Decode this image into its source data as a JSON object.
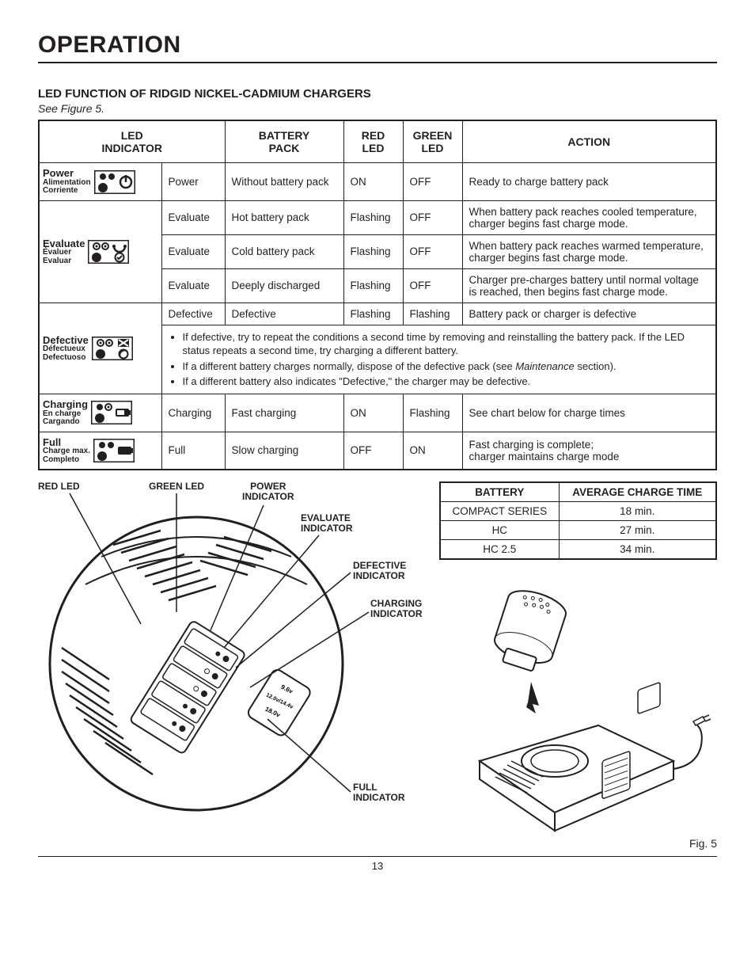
{
  "page_title": "OPERATION",
  "subheading": "LED FUNCTION OF RIDGID NICKEL-CADMIUM CHARGERS",
  "figure_ref": "See Figure 5.",
  "headers": {
    "led_indicator": "LED\nINDICATOR",
    "battery_pack": "BATTERY\nPACK",
    "red_led": "RED\nLED",
    "green_led": "GREEN\nLED",
    "action": "ACTION"
  },
  "rows": {
    "power": {
      "labels": [
        "Power",
        "Alimentation",
        "Corriente"
      ],
      "indicator": "Power",
      "battery": "Without battery pack",
      "red": "ON",
      "green": "OFF",
      "action": "Ready to charge battery pack"
    },
    "evaluate": {
      "labels": [
        "Evaluate",
        "Évaluer",
        "Evaluar"
      ],
      "r1": {
        "indicator": "Evaluate",
        "battery": "Hot battery pack",
        "red": "Flashing",
        "green": "OFF",
        "action": "When battery pack reaches cooled temperature, charger begins fast charge mode."
      },
      "r2": {
        "indicator": "Evaluate",
        "battery": "Cold battery pack",
        "red": "Flashing",
        "green": "OFF",
        "action": "When battery pack reaches warmed temperature, charger begins fast charge mode."
      },
      "r3": {
        "indicator": "Evaluate",
        "battery": "Deeply discharged",
        "red": "Flashing",
        "green": "OFF",
        "action": "Charger pre-charges battery until normal voltage is reached, then begins fast charge mode."
      }
    },
    "defective": {
      "labels": [
        "Defective",
        "Défectueux",
        "Defectuoso"
      ],
      "r1": {
        "indicator": "Defective",
        "battery": "Defective",
        "red": "Flashing",
        "green": "Flashing",
        "action": "Battery pack or charger is defective"
      },
      "bullets": [
        "If defective, try to repeat the conditions a second time by removing and reinstalling the battery pack. If the LED status repeats a second time, try charging a different battery.",
        "If a different battery charges normally, dispose of the defective pack (see |Maintenance| section).",
        "If a different battery also indicates \"Defective,\" the charger may be defective."
      ]
    },
    "charging": {
      "labels": [
        "Charging",
        "En charge",
        "Cargando"
      ],
      "indicator": "Charging",
      "battery": "Fast charging",
      "red": "ON",
      "green": "Flashing",
      "action": "See chart below for charge times"
    },
    "full": {
      "labels": [
        "Full",
        "Charge max.",
        "Completo"
      ],
      "indicator": "Full",
      "battery": "Slow charging",
      "red": "OFF",
      "green": "ON",
      "action": "Fast charging is complete;\ncharger maintains charge mode"
    }
  },
  "diagram_labels": {
    "red_led": "RED LED",
    "green_led": "GREEN LED",
    "power_ind": "POWER\nINDICATOR",
    "evaluate_ind": "EVALUATE\nINDICATOR",
    "defective_ind": "DEFECTIVE\nINDICATOR",
    "charging_ind": "CHARGING\nINDICATOR",
    "full_ind": "FULL\nINDICATOR"
  },
  "charge_table": {
    "headers": [
      "BATTERY",
      "AVERAGE CHARGE TIME"
    ],
    "rows": [
      [
        "COMPACT SERIES",
        "18 min."
      ],
      [
        "HC",
        "27 min."
      ],
      [
        "HC 2.5",
        "34 min."
      ]
    ]
  },
  "fig_caption": "Fig. 5",
  "page_number": "13",
  "colors": {
    "text": "#231f20",
    "border": "#231f20",
    "background": "#ffffff"
  }
}
